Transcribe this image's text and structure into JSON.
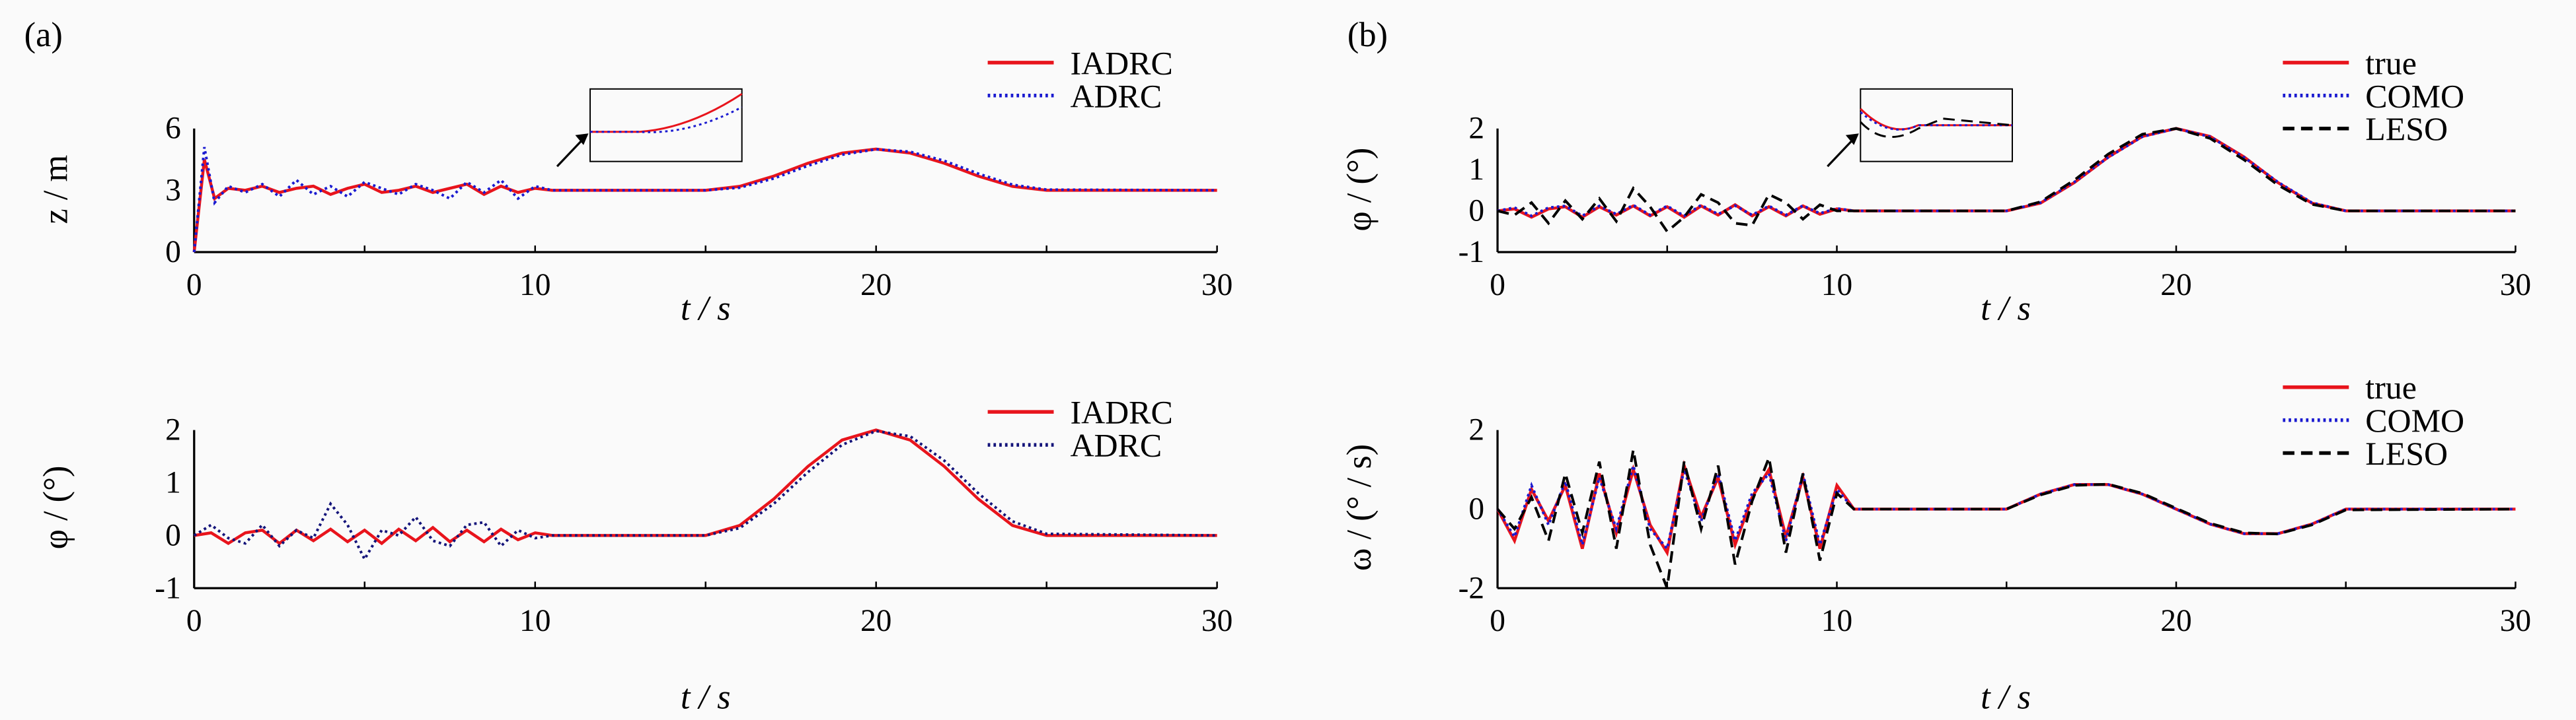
{
  "panel_labels": [
    "(a)",
    "(b)"
  ],
  "chart_data": [
    {
      "type": "line",
      "id": "a-top",
      "ylabel": "z / m",
      "xlabel": "t / s",
      "xlim": [
        0,
        30
      ],
      "ylim": [
        0,
        6
      ],
      "xticks": [
        0,
        10,
        20,
        30
      ],
      "yticks": [
        0,
        3,
        6
      ],
      "legend": "top-right",
      "inset": true,
      "x": [
        0,
        0.3,
        0.6,
        1,
        1.5,
        2,
        2.5,
        3,
        3.5,
        4,
        4.5,
        5,
        5.5,
        6,
        6.5,
        7,
        7.5,
        8,
        8.5,
        9,
        9.5,
        10,
        10.5,
        11,
        15,
        16,
        17,
        18,
        19,
        20,
        21,
        22,
        23,
        24,
        25,
        30
      ],
      "series": [
        {
          "name": "IADRC",
          "color": "#e8141c",
          "style": "solid",
          "values": [
            0,
            4.5,
            2.6,
            3.1,
            3.0,
            3.2,
            2.9,
            3.1,
            3.2,
            2.8,
            3.1,
            3.3,
            2.9,
            3.0,
            3.2,
            2.9,
            3.1,
            3.3,
            2.8,
            3.2,
            2.9,
            3.1,
            3.0,
            3.0,
            3.0,
            3.19,
            3.69,
            4.31,
            4.81,
            5.0,
            4.81,
            4.31,
            3.69,
            3.19,
            3.0,
            3.0
          ]
        },
        {
          "name": "ADRC",
          "color": "#1a1ad0",
          "style": "dotted",
          "values": [
            0,
            5.1,
            2.4,
            3.2,
            2.9,
            3.3,
            2.7,
            3.5,
            2.8,
            3.2,
            2.7,
            3.4,
            3.1,
            2.8,
            3.3,
            3.0,
            2.6,
            3.4,
            2.9,
            3.5,
            2.6,
            3.2,
            3.0,
            3.0,
            3.0,
            3.13,
            3.58,
            4.19,
            4.73,
            4.99,
            4.87,
            4.43,
            3.81,
            3.27,
            3.03,
            3.0
          ]
        }
      ]
    },
    {
      "type": "line",
      "id": "a-bottom",
      "ylabel": "φ / (°)",
      "xlabel": "t / s",
      "xlim": [
        0,
        30
      ],
      "ylim": [
        -1,
        2
      ],
      "xticks": [
        0,
        10,
        20,
        30
      ],
      "yticks": [
        -1,
        0,
        1,
        2
      ],
      "legend": "top-right",
      "x": [
        0,
        0.5,
        1,
        1.5,
        2,
        2.5,
        3,
        3.5,
        4,
        4.5,
        5,
        5.5,
        6,
        6.5,
        7,
        7.5,
        8,
        8.5,
        9,
        9.5,
        10,
        10.5,
        11,
        15,
        16,
        17,
        18,
        19,
        20,
        21,
        22,
        23,
        24,
        25,
        30
      ],
      "series": [
        {
          "name": "IADRC",
          "color": "#e8141c",
          "style": "solid",
          "values": [
            0,
            0.05,
            -0.15,
            0.05,
            0.1,
            -0.15,
            0.1,
            -0.1,
            0.12,
            -0.12,
            0.1,
            -0.15,
            0.12,
            -0.1,
            0.15,
            -0.12,
            0.1,
            -0.12,
            0.12,
            -0.08,
            0.05,
            0,
            0,
            0,
            0.19,
            0.69,
            1.31,
            1.81,
            2.0,
            1.81,
            1.31,
            0.69,
            0.19,
            0,
            0
          ]
        },
        {
          "name": "ADRC",
          "color": "#14147a",
          "style": "dotted",
          "values": [
            0,
            0.2,
            -0.05,
            -0.15,
            0.2,
            -0.2,
            0.1,
            -0.05,
            0.6,
            0.2,
            -0.45,
            0.1,
            0.0,
            0.35,
            -0.1,
            -0.2,
            0.2,
            0.25,
            -0.2,
            0.1,
            -0.05,
            0,
            0,
            0,
            0.14,
            0.6,
            1.2,
            1.72,
            1.98,
            1.88,
            1.42,
            0.8,
            0.27,
            0.03,
            0
          ]
        }
      ]
    },
    {
      "type": "line",
      "id": "b-top",
      "ylabel": "φ / (°)",
      "xlabel": "t / s",
      "xlim": [
        0,
        30
      ],
      "ylim": [
        -1,
        2
      ],
      "xticks": [
        0,
        10,
        20,
        30
      ],
      "yticks": [
        -1,
        0,
        1,
        2
      ],
      "legend": "top-right",
      "inset": true,
      "x": [
        0,
        0.5,
        1,
        1.5,
        2,
        2.5,
        3,
        3.5,
        4,
        4.5,
        5,
        5.5,
        6,
        6.5,
        7,
        7.5,
        8,
        8.5,
        9,
        9.5,
        10,
        10.5,
        11,
        15,
        16,
        17,
        18,
        19,
        20,
        21,
        22,
        23,
        24,
        25,
        30
      ],
      "series": [
        {
          "name": "true",
          "color": "#e8141c",
          "style": "solid",
          "values": [
            0,
            0.05,
            -0.15,
            0.05,
            0.1,
            -0.15,
            0.1,
            -0.1,
            0.12,
            -0.12,
            0.1,
            -0.15,
            0.12,
            -0.1,
            0.15,
            -0.12,
            0.1,
            -0.12,
            0.12,
            -0.08,
            0.05,
            0,
            0,
            0,
            0.19,
            0.69,
            1.31,
            1.81,
            2.0,
            1.81,
            1.31,
            0.69,
            0.19,
            0,
            0
          ]
        },
        {
          "name": "COMO",
          "color": "#1a1ad0",
          "style": "dotted",
          "values": [
            0,
            0.08,
            -0.12,
            0.08,
            0.12,
            -0.12,
            0.12,
            -0.08,
            0.14,
            -0.1,
            0.12,
            -0.12,
            0.14,
            -0.08,
            0.13,
            -0.1,
            0.12,
            -0.1,
            0.13,
            -0.06,
            0.06,
            0,
            0,
            0,
            0.2,
            0.7,
            1.3,
            1.8,
            2.0,
            1.8,
            1.3,
            0.7,
            0.2,
            0,
            0
          ]
        },
        {
          "name": "LESO",
          "color": "#000000",
          "style": "dashed",
          "values": [
            0,
            -0.1,
            0.2,
            -0.3,
            0.25,
            -0.2,
            0.3,
            -0.25,
            0.55,
            0.1,
            -0.5,
            -0.15,
            0.4,
            0.2,
            -0.3,
            -0.35,
            0.4,
            0.2,
            -0.2,
            0.15,
            0.0,
            0,
            0,
            0,
            0.22,
            0.75,
            1.38,
            1.86,
            2.0,
            1.76,
            1.24,
            0.63,
            0.16,
            0,
            0
          ]
        }
      ]
    },
    {
      "type": "line",
      "id": "b-bottom",
      "ylabel": "ω / (° / s)",
      "xlabel": "t / s",
      "xlim": [
        0,
        30
      ],
      "ylim": [
        -2,
        2
      ],
      "xticks": [
        0,
        10,
        20,
        30
      ],
      "yticks": [
        -2,
        0,
        2
      ],
      "legend": "top-right",
      "x": [
        0,
        0.5,
        1,
        1.5,
        2,
        2.5,
        3,
        3.5,
        4,
        4.5,
        5,
        5.5,
        6,
        6.5,
        7,
        7.5,
        8,
        8.5,
        9,
        9.5,
        10,
        10.5,
        11,
        15,
        16,
        17,
        18,
        19,
        20,
        21,
        22,
        23,
        24,
        25,
        30
      ],
      "series": [
        {
          "name": "true",
          "color": "#e8141c",
          "style": "solid",
          "values": [
            0,
            -0.8,
            0.5,
            -0.3,
            0.6,
            -1.0,
            0.9,
            -0.6,
            1.0,
            -0.4,
            -1.1,
            1.1,
            -0.2,
            0.8,
            -0.9,
            0.3,
            1.0,
            -0.7,
            0.8,
            -1.0,
            0.6,
            0,
            0,
            0,
            0.38,
            0.62,
            0.62,
            0.38,
            0,
            -0.38,
            -0.62,
            -0.62,
            -0.38,
            0,
            0
          ]
        },
        {
          "name": "COMO",
          "color": "#1a1ad0",
          "style": "dotted",
          "values": [
            0,
            -0.7,
            0.6,
            -0.4,
            0.7,
            -0.9,
            0.8,
            -0.5,
            1.1,
            -0.5,
            -1.0,
            1.0,
            -0.3,
            0.9,
            -0.8,
            0.4,
            0.9,
            -0.8,
            0.9,
            -0.9,
            0.5,
            0,
            0,
            0,
            0.38,
            0.62,
            0.62,
            0.38,
            0,
            -0.38,
            -0.62,
            -0.62,
            -0.38,
            0,
            0
          ]
        },
        {
          "name": "LESO",
          "color": "#000000",
          "style": "dashed",
          "values": [
            0,
            -0.5,
            0.3,
            -0.8,
            0.9,
            -0.6,
            1.2,
            -1.0,
            1.5,
            -0.9,
            -2.0,
            1.2,
            -0.5,
            1.1,
            -1.4,
            0.2,
            1.3,
            -1.1,
            0.9,
            -1.3,
            0.4,
            0,
            0,
            0,
            0.36,
            0.6,
            0.63,
            0.4,
            0.02,
            -0.36,
            -0.6,
            -0.63,
            -0.4,
            -0.02,
            0
          ]
        }
      ]
    }
  ]
}
